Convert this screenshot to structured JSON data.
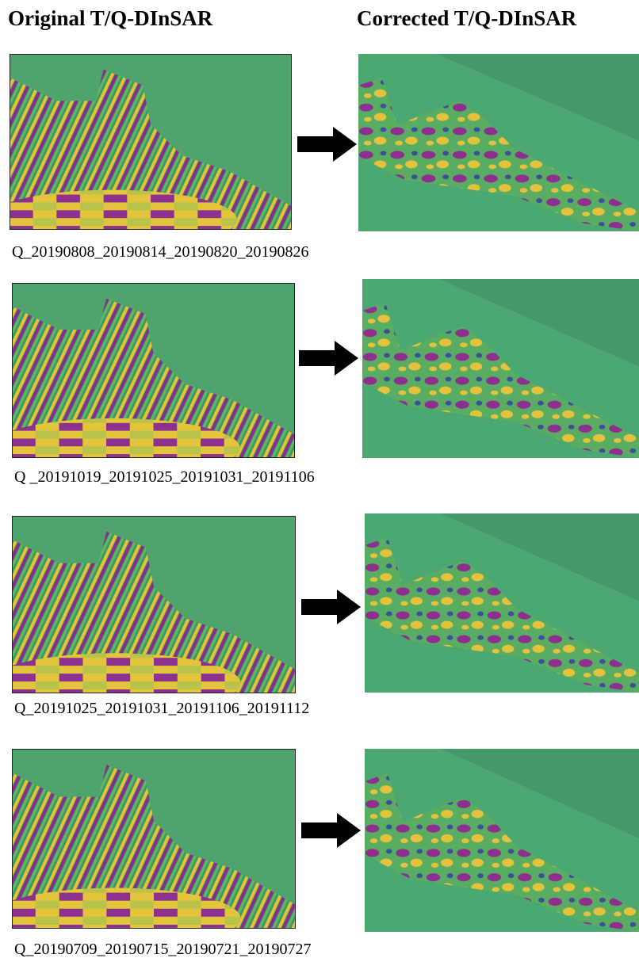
{
  "header": {
    "left": "Original T/Q-DInSAR",
    "right": "Corrected T/Q-DInSAR"
  },
  "rows": [
    {
      "caption": "Q_20190808_20190814_20190820_20190826"
    },
    {
      "caption": "Q _20191019_20191025_20191031_20191106"
    },
    {
      "caption": "Q_20191025_20191031_20191106_20191112"
    },
    {
      "caption": "Q_20190709_20190715_20190721_20190727"
    }
  ]
}
